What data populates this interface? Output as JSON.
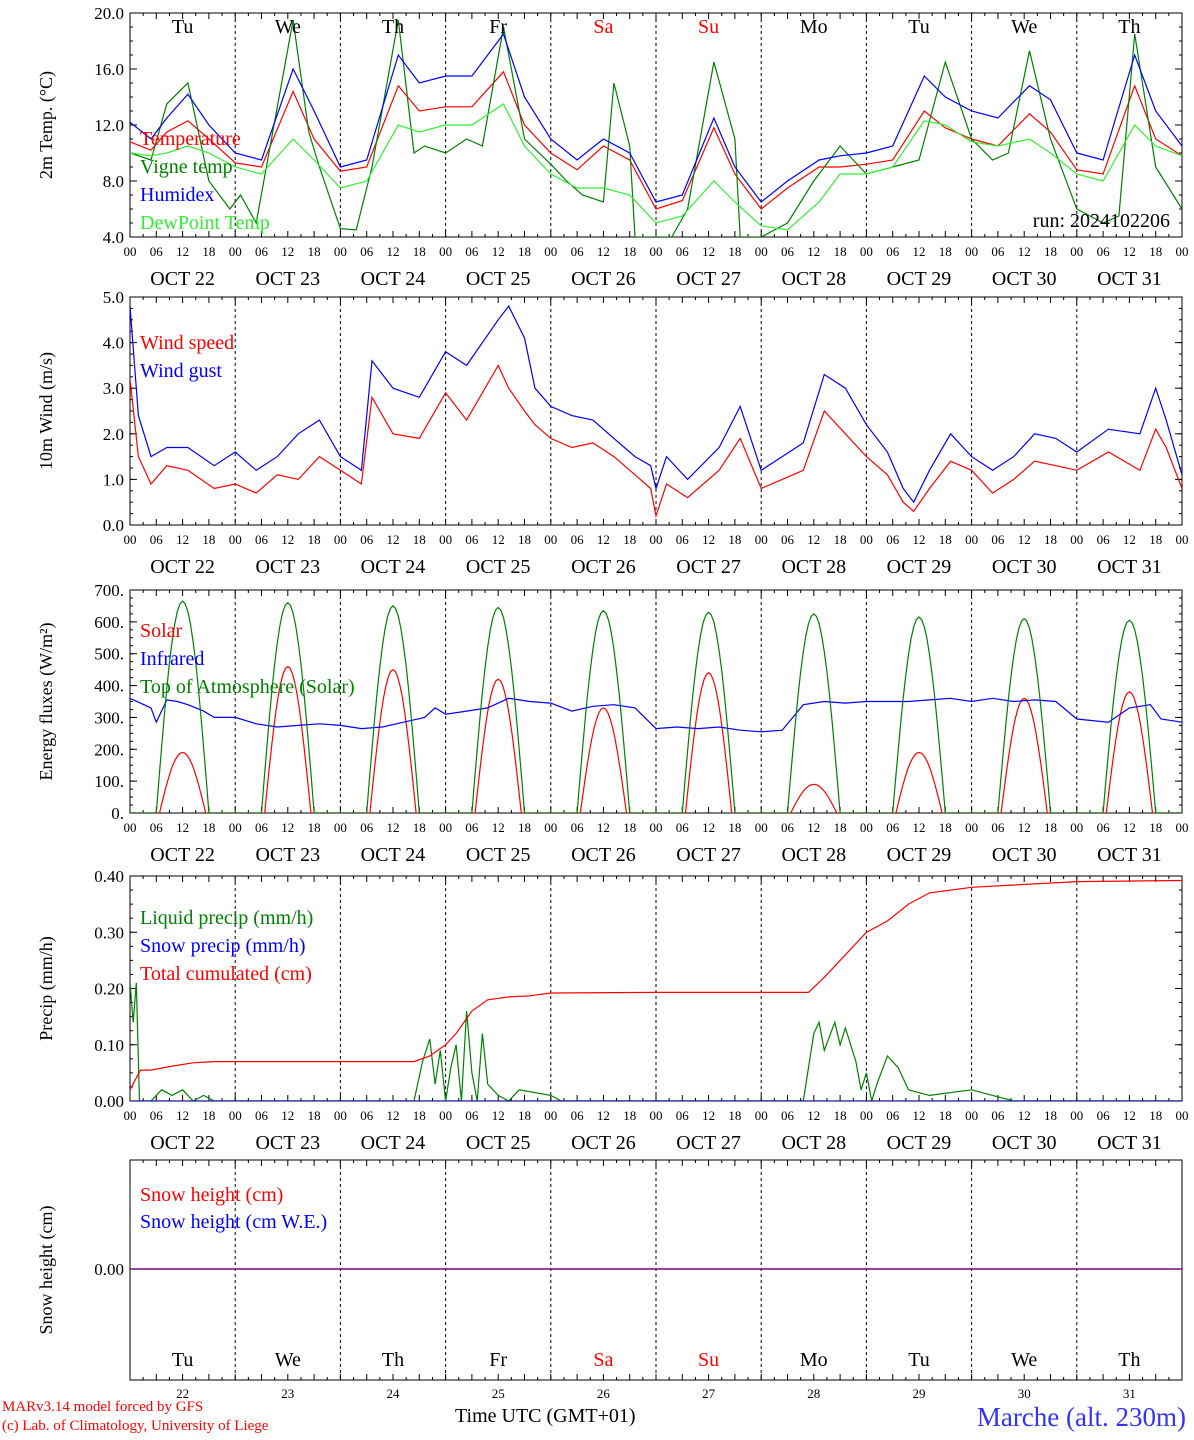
{
  "footer": {
    "credit_line1": "MARv3.14 model forced by GFS",
    "credit_line2": "(c) Lab. of Climatology, University of Liege",
    "xaxis_title": "Time UTC (GMT+01)",
    "station": "Marche (alt. 230m)"
  },
  "run_label": "run: 2024102206",
  "days": [
    "Tu",
    "We",
    "Th",
    "Fr",
    "Sa",
    "Su",
    "Mo",
    "Tu",
    "We",
    "Th"
  ],
  "weekend_days": [
    4,
    5
  ],
  "dates": [
    "OCT 22",
    "OCT 23",
    "OCT 24",
    "OCT 25",
    "OCT 26",
    "OCT 27",
    "OCT 28",
    "OCT 29",
    "OCT 30",
    "OCT 31"
  ],
  "day_numbers": [
    "22",
    "23",
    "24",
    "25",
    "26",
    "27",
    "28",
    "29",
    "30",
    "31"
  ],
  "hour_ticks": [
    "00",
    "06",
    "12",
    "18"
  ],
  "end_tick": "00",
  "colors": {
    "red": "#ff0000",
    "green": "#008000",
    "blue": "#0000ff",
    "lightgreen": "#33ee33",
    "purple": "#800080",
    "station": "#3333ff"
  },
  "chart_data": [
    {
      "type": "line",
      "ylabel": "2m Temp. (°C)",
      "ylim": [
        4.0,
        20.0
      ],
      "yticks": [
        "4.0",
        "8.0",
        "12.0",
        "16.0",
        "20.0"
      ],
      "x_unit": "days since OCT 22 00 UTC",
      "series": [
        {
          "name": "Temperature",
          "color": "red",
          "x": [
            0,
            0.2,
            0.35,
            0.55,
            0.75,
            1.0,
            1.25,
            1.55,
            1.75,
            2.0,
            2.25,
            2.55,
            2.75,
            3.0,
            3.25,
            3.55,
            3.75,
            4.0,
            4.25,
            4.5,
            4.75,
            5.0,
            5.25,
            5.55,
            5.75,
            6.0,
            6.25,
            6.55,
            6.75,
            7.0,
            7.25,
            7.55,
            7.75,
            8.0,
            8.25,
            8.55,
            8.75,
            9.0,
            9.25,
            9.55,
            9.75,
            10.0
          ],
          "y": [
            10.8,
            10.2,
            11.5,
            12.3,
            11.0,
            9.3,
            9.0,
            14.4,
            11.0,
            8.7,
            9.0,
            14.8,
            13.0,
            13.3,
            13.3,
            15.8,
            12.0,
            10.0,
            8.8,
            10.5,
            9.5,
            6.0,
            6.6,
            11.8,
            8.5,
            6.0,
            7.5,
            9.0,
            9.0,
            9.2,
            9.5,
            13.0,
            11.8,
            11.0,
            10.5,
            12.8,
            11.5,
            8.8,
            8.5,
            14.8,
            11.0,
            9.8
          ]
        },
        {
          "name": "Vigne temp",
          "color": "green",
          "x": [
            0,
            0.2,
            0.35,
            0.55,
            0.75,
            0.95,
            1.05,
            1.2,
            1.55,
            1.7,
            1.8,
            2.0,
            2.15,
            2.3,
            2.55,
            2.7,
            2.8,
            3.0,
            3.2,
            3.35,
            3.55,
            3.75,
            4.0,
            4.15,
            4.3,
            4.5,
            4.6,
            4.75,
            4.8,
            5.0,
            5.15,
            5.3,
            5.55,
            5.75,
            5.8,
            6.0,
            6.25,
            6.5,
            6.75,
            7.0,
            7.25,
            7.5,
            7.75,
            8.0,
            8.2,
            8.35,
            8.55,
            8.75,
            9.0,
            9.25,
            9.4,
            9.55,
            9.75,
            10.0
          ],
          "y": [
            10.0,
            9.5,
            13.5,
            15.0,
            8.0,
            6.0,
            7.0,
            5.0,
            19.5,
            11.5,
            9.0,
            4.6,
            4.5,
            9.0,
            19.5,
            10.0,
            10.5,
            10.0,
            11.0,
            10.5,
            19.0,
            11.0,
            9.2,
            8.0,
            7.0,
            6.5,
            15.0,
            10.5,
            4.0,
            4.0,
            4.0,
            6.0,
            16.5,
            11.0,
            4.0,
            4.0,
            5.0,
            8.0,
            10.5,
            8.5,
            9.0,
            9.5,
            16.5,
            11.0,
            9.5,
            10.0,
            17.3,
            11.0,
            6.0,
            5.0,
            5.5,
            18.5,
            9.0,
            6.0
          ]
        },
        {
          "name": "Humidex",
          "color": "blue",
          "x": [
            0,
            0.2,
            0.35,
            0.55,
            0.75,
            1.0,
            1.25,
            1.55,
            1.75,
            2.0,
            2.25,
            2.55,
            2.75,
            3.0,
            3.25,
            3.55,
            3.75,
            4.0,
            4.25,
            4.5,
            4.75,
            5.0,
            5.25,
            5.55,
            5.75,
            6.0,
            6.25,
            6.55,
            6.75,
            7.0,
            7.25,
            7.55,
            7.75,
            8.0,
            8.25,
            8.55,
            8.75,
            9.0,
            9.25,
            9.55,
            9.75,
            10.0
          ],
          "y": [
            12.2,
            11.0,
            12.5,
            14.2,
            12.0,
            10.0,
            9.5,
            16.0,
            13.0,
            9.0,
            9.5,
            17.0,
            15.0,
            15.5,
            15.5,
            18.5,
            14.0,
            11.0,
            9.5,
            11.0,
            10.0,
            6.5,
            7.0,
            12.5,
            9.0,
            6.5,
            8.0,
            9.5,
            9.8,
            10.0,
            10.5,
            15.5,
            14.0,
            13.0,
            12.5,
            14.8,
            13.8,
            10.0,
            9.5,
            17.0,
            13.0,
            10.5
          ]
        },
        {
          "name": "DewPoint Temp",
          "color": "lightgreen",
          "x": [
            0,
            0.2,
            0.35,
            0.55,
            0.75,
            1.0,
            1.25,
            1.55,
            1.75,
            2.0,
            2.25,
            2.55,
            2.75,
            3.0,
            3.25,
            3.55,
            3.75,
            4.0,
            4.25,
            4.5,
            4.75,
            5.0,
            5.25,
            5.55,
            5.75,
            6.0,
            6.25,
            6.55,
            6.75,
            7.0,
            7.25,
            7.55,
            7.75,
            8.0,
            8.25,
            8.55,
            8.75,
            9.0,
            9.25,
            9.55,
            9.75,
            10.0
          ],
          "y": [
            10.0,
            9.8,
            10.0,
            10.5,
            10.0,
            9.0,
            8.5,
            11.0,
            9.5,
            7.5,
            8.0,
            12.0,
            11.5,
            12.0,
            12.0,
            13.5,
            10.5,
            8.5,
            7.5,
            7.5,
            7.0,
            5.0,
            5.5,
            8.0,
            6.5,
            4.8,
            4.5,
            6.5,
            8.5,
            8.5,
            9.0,
            12.3,
            12.0,
            10.8,
            10.5,
            11.0,
            10.0,
            8.5,
            8.0,
            12.0,
            10.5,
            9.8
          ]
        }
      ],
      "run_label": true
    },
    {
      "type": "line",
      "ylabel": "10m Wind (m/s)",
      "ylim": [
        0.0,
        5.0
      ],
      "yticks": [
        "0.0",
        "1.0",
        "2.0",
        "3.0",
        "4.0",
        "5.0"
      ],
      "x_unit": "days since OCT 22 00 UTC",
      "series": [
        {
          "name": "Wind speed",
          "color": "red",
          "x": [
            0,
            0.08,
            0.2,
            0.35,
            0.55,
            0.8,
            1.0,
            1.2,
            1.4,
            1.6,
            1.8,
            2.0,
            2.2,
            2.3,
            2.5,
            2.75,
            3.0,
            3.2,
            3.5,
            3.6,
            3.75,
            3.85,
            4.0,
            4.2,
            4.4,
            4.6,
            4.8,
            4.95,
            5.0,
            5.1,
            5.3,
            5.6,
            5.8,
            6.0,
            6.2,
            6.4,
            6.6,
            6.8,
            7.0,
            7.2,
            7.35,
            7.45,
            7.6,
            7.8,
            8.0,
            8.2,
            8.4,
            8.6,
            8.8,
            9.0,
            9.3,
            9.6,
            9.75,
            9.85,
            10.0
          ],
          "y": [
            3.2,
            1.5,
            0.9,
            1.3,
            1.2,
            0.8,
            0.9,
            0.7,
            1.1,
            1.0,
            1.5,
            1.2,
            0.9,
            2.8,
            2.0,
            1.9,
            2.9,
            2.3,
            3.5,
            3.0,
            2.5,
            2.2,
            1.9,
            1.7,
            1.8,
            1.5,
            1.1,
            0.8,
            0.2,
            0.9,
            0.6,
            1.2,
            1.9,
            0.8,
            1.0,
            1.2,
            2.5,
            2.0,
            1.5,
            1.1,
            0.5,
            0.3,
            0.8,
            1.4,
            1.2,
            0.7,
            1.0,
            1.4,
            1.3,
            1.2,
            1.6,
            1.2,
            2.1,
            1.7,
            0.8
          ]
        },
        {
          "name": "Wind gust",
          "color": "blue",
          "x": [
            0,
            0.08,
            0.2,
            0.35,
            0.55,
            0.8,
            1.0,
            1.2,
            1.4,
            1.6,
            1.8,
            2.0,
            2.2,
            2.3,
            2.5,
            2.75,
            3.0,
            3.2,
            3.5,
            3.6,
            3.75,
            3.85,
            4.0,
            4.2,
            4.4,
            4.6,
            4.8,
            4.95,
            5.0,
            5.1,
            5.3,
            5.6,
            5.8,
            6.0,
            6.2,
            6.4,
            6.6,
            6.8,
            7.0,
            7.2,
            7.35,
            7.45,
            7.6,
            7.8,
            8.0,
            8.2,
            8.4,
            8.6,
            8.8,
            9.0,
            9.3,
            9.6,
            9.75,
            9.85,
            10.0
          ],
          "y": [
            4.8,
            2.4,
            1.5,
            1.7,
            1.7,
            1.3,
            1.6,
            1.2,
            1.5,
            2.0,
            2.3,
            1.5,
            1.2,
            3.6,
            3.0,
            2.8,
            3.8,
            3.5,
            4.5,
            4.8,
            4.1,
            3.0,
            2.6,
            2.4,
            2.3,
            1.9,
            1.5,
            1.3,
            0.8,
            1.5,
            1.0,
            1.7,
            2.6,
            1.2,
            1.5,
            1.8,
            3.3,
            3.0,
            2.2,
            1.6,
            0.8,
            0.5,
            1.2,
            2.0,
            1.5,
            1.2,
            1.5,
            2.0,
            1.9,
            1.6,
            2.1,
            2.0,
            3.0,
            2.3,
            1.1
          ]
        }
      ]
    },
    {
      "type": "line",
      "ylabel": "Energy fluxes (W/m²)",
      "ylim": [
        0,
        700
      ],
      "yticks": [
        "0.",
        "100.",
        "200.",
        "300.",
        "400.",
        "500.",
        "600.",
        "700."
      ],
      "x_unit": "days since OCT 22 00 UTC",
      "series": [
        {
          "name": "Solar",
          "color": "red",
          "daily_peaks": [
            190,
            460,
            450,
            420,
            330,
            440,
            90,
            190,
            360,
            380
          ]
        },
        {
          "name": "Infrared",
          "color": "blue",
          "x": [
            0,
            0.2,
            0.25,
            0.35,
            0.45,
            0.55,
            0.7,
            0.8,
            1.0,
            1.2,
            1.4,
            1.6,
            1.8,
            2.0,
            2.2,
            2.4,
            2.6,
            2.8,
            2.9,
            3.0,
            3.2,
            3.4,
            3.6,
            3.8,
            4.0,
            4.2,
            4.4,
            4.6,
            4.8,
            5.0,
            5.2,
            5.4,
            5.6,
            5.8,
            6.0,
            6.2,
            6.4,
            6.6,
            6.8,
            7.0,
            7.2,
            7.4,
            7.6,
            7.8,
            8.0,
            8.2,
            8.4,
            8.6,
            8.8,
            9.0,
            9.3,
            9.5,
            9.7,
            9.8,
            10.0
          ],
          "y": [
            360,
            330,
            285,
            355,
            350,
            340,
            320,
            300,
            300,
            280,
            270,
            275,
            280,
            275,
            265,
            270,
            285,
            300,
            330,
            310,
            320,
            330,
            360,
            350,
            345,
            320,
            335,
            340,
            330,
            265,
            270,
            265,
            270,
            260,
            255,
            260,
            340,
            350,
            345,
            350,
            350,
            350,
            355,
            360,
            350,
            360,
            350,
            355,
            350,
            295,
            285,
            330,
            340,
            295,
            285
          ]
        },
        {
          "name": "Top of Atmosphere (Solar)",
          "color": "green",
          "daily_peaks": [
            665,
            660,
            650,
            645,
            635,
            630,
            625,
            615,
            610,
            605
          ]
        }
      ]
    },
    {
      "type": "line",
      "ylabel": "Precip (mm/h)",
      "ylim": [
        0.0,
        0.4
      ],
      "yticks": [
        "0.00",
        "0.10",
        "0.20",
        "0.30",
        "0.40"
      ],
      "x_unit": "days since OCT 22 00 UTC",
      "series": [
        {
          "name": "Liquid precip (mm/h)",
          "color": "green",
          "x": [
            0,
            0.03,
            0.06,
            0.09,
            0.12,
            0.2,
            0.3,
            0.4,
            0.5,
            0.6,
            0.7,
            0.8,
            1.0,
            2.7,
            2.78,
            2.85,
            2.9,
            2.95,
            3.0,
            3.05,
            3.1,
            3.15,
            3.2,
            3.25,
            3.3,
            3.35,
            3.4,
            3.5,
            3.6,
            3.7,
            4.0,
            4.1,
            4.2,
            6.4,
            6.5,
            6.55,
            6.6,
            6.7,
            6.75,
            6.8,
            6.9,
            6.95,
            7.0,
            7.05,
            7.1,
            7.2,
            7.3,
            7.4,
            7.6,
            8.0,
            8.2,
            8.4,
            10.0
          ],
          "y": [
            0.21,
            0.14,
            0.21,
            0.0,
            0.0,
            0.0,
            0.02,
            0.01,
            0.02,
            0.0,
            0.01,
            0.0,
            0.0,
            0.0,
            0.07,
            0.11,
            0.03,
            0.09,
            0.0,
            0.06,
            0.1,
            0.0,
            0.16,
            0.05,
            0.0,
            0.12,
            0.03,
            0.01,
            0.0,
            0.02,
            0.01,
            0.0,
            0.0,
            0.0,
            0.12,
            0.14,
            0.09,
            0.14,
            0.1,
            0.13,
            0.07,
            0.02,
            0.05,
            0.0,
            0.03,
            0.08,
            0.06,
            0.02,
            0.01,
            0.02,
            0.01,
            0.0,
            0.0
          ]
        },
        {
          "name": "Snow precip (mm/h)",
          "color": "blue",
          "x": [
            0,
            10
          ],
          "y": [
            0,
            0
          ]
        },
        {
          "name": "Total cumulated (cm)",
          "color": "red",
          "x": [
            0,
            0.1,
            0.2,
            0.4,
            0.6,
            0.8,
            1.0,
            2.0,
            2.7,
            2.85,
            3.0,
            3.1,
            3.25,
            3.4,
            3.6,
            3.8,
            4.0,
            5.0,
            6.0,
            6.45,
            6.6,
            6.8,
            7.0,
            7.2,
            7.4,
            7.6,
            8.0,
            9.0,
            10.0
          ],
          "y": [
            0.02,
            0.055,
            0.055,
            0.062,
            0.068,
            0.07,
            0.07,
            0.07,
            0.07,
            0.08,
            0.1,
            0.12,
            0.16,
            0.18,
            0.185,
            0.187,
            0.192,
            0.193,
            0.193,
            0.193,
            0.22,
            0.26,
            0.3,
            0.32,
            0.35,
            0.37,
            0.38,
            0.39,
            0.392
          ]
        }
      ]
    },
    {
      "type": "line",
      "ylabel": "Snow height (cm)",
      "yticks": [
        "0.00"
      ],
      "x_unit": "days since OCT 22 00 UTC",
      "series": [
        {
          "name": "Snow height (cm)",
          "color": "red",
          "x": [
            0,
            10
          ],
          "y": [
            0,
            0
          ]
        },
        {
          "name": "Snow height (cm W.E.)",
          "color": "blue",
          "x": [
            0,
            10
          ],
          "y": [
            0,
            0
          ]
        }
      ]
    }
  ]
}
